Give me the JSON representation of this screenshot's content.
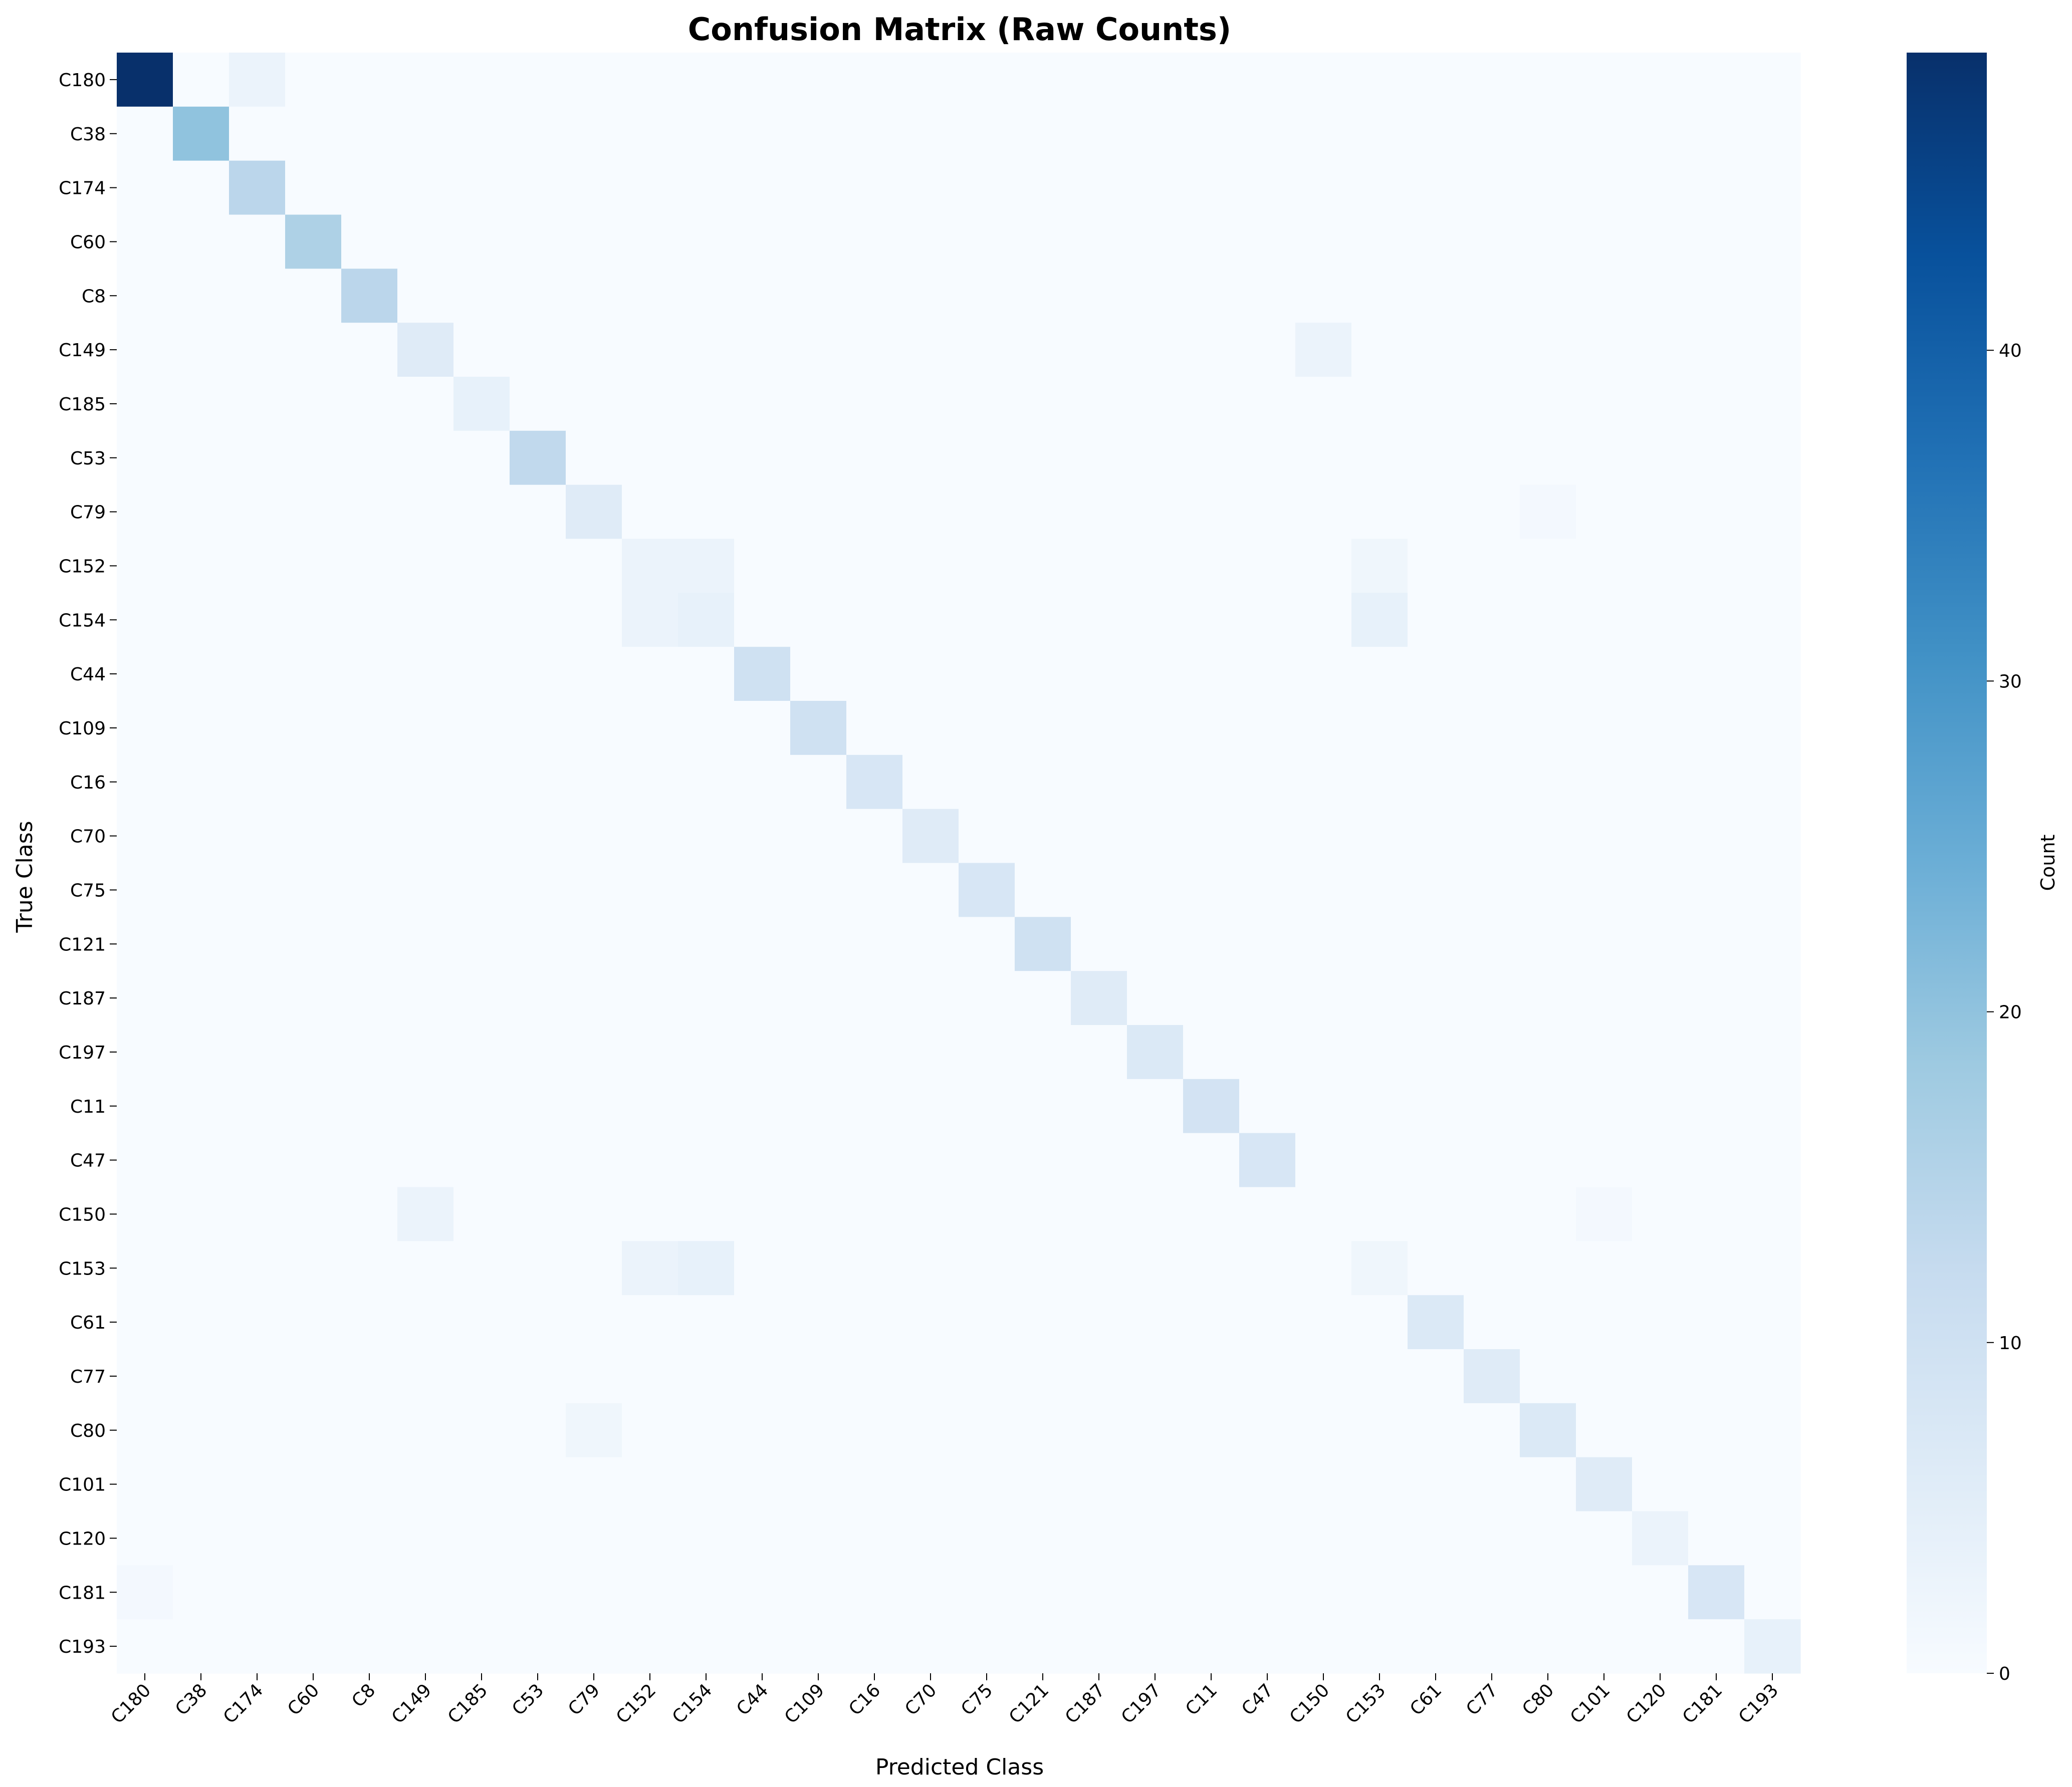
{
  "chart_data": {
    "type": "heatmap",
    "title": "Confusion Matrix (Raw Counts)",
    "xlabel": "Predicted Class",
    "ylabel": "True Class",
    "colorbar_label": "Count",
    "colormap": "Blues",
    "vmin": 0,
    "vmax": 49,
    "colorbar_ticks": [
      0,
      10,
      20,
      30,
      40
    ],
    "classes": [
      "C180",
      "C38",
      "C174",
      "C60",
      "C8",
      "C149",
      "C185",
      "C53",
      "C79",
      "C152",
      "C154",
      "C44",
      "C109",
      "C16",
      "C70",
      "C75",
      "C121",
      "C187",
      "C197",
      "C11",
      "C47",
      "C150",
      "C153",
      "C61",
      "C77",
      "C80",
      "C101",
      "C120",
      "C181",
      "C193"
    ],
    "cells": [
      {
        "row": 0,
        "col": 0,
        "value": 49
      },
      {
        "row": 0,
        "col": 2,
        "value": 3
      },
      {
        "row": 1,
        "col": 1,
        "value": 20
      },
      {
        "row": 2,
        "col": 2,
        "value": 14
      },
      {
        "row": 3,
        "col": 3,
        "value": 16
      },
      {
        "row": 4,
        "col": 4,
        "value": 14
      },
      {
        "row": 5,
        "col": 5,
        "value": 6
      },
      {
        "row": 5,
        "col": 21,
        "value": 3
      },
      {
        "row": 6,
        "col": 6,
        "value": 4
      },
      {
        "row": 7,
        "col": 7,
        "value": 13
      },
      {
        "row": 8,
        "col": 8,
        "value": 6
      },
      {
        "row": 8,
        "col": 25,
        "value": 1
      },
      {
        "row": 9,
        "col": 9,
        "value": 3
      },
      {
        "row": 9,
        "col": 10,
        "value": 3
      },
      {
        "row": 9,
        "col": 22,
        "value": 2
      },
      {
        "row": 10,
        "col": 9,
        "value": 3
      },
      {
        "row": 10,
        "col": 10,
        "value": 4
      },
      {
        "row": 10,
        "col": 22,
        "value": 4
      },
      {
        "row": 11,
        "col": 11,
        "value": 10
      },
      {
        "row": 12,
        "col": 12,
        "value": 10
      },
      {
        "row": 13,
        "col": 13,
        "value": 8
      },
      {
        "row": 14,
        "col": 14,
        "value": 6
      },
      {
        "row": 15,
        "col": 15,
        "value": 8
      },
      {
        "row": 16,
        "col": 16,
        "value": 10
      },
      {
        "row": 17,
        "col": 17,
        "value": 6
      },
      {
        "row": 18,
        "col": 18,
        "value": 7
      },
      {
        "row": 19,
        "col": 19,
        "value": 9
      },
      {
        "row": 20,
        "col": 20,
        "value": 8
      },
      {
        "row": 21,
        "col": 5,
        "value": 3
      },
      {
        "row": 21,
        "col": 26,
        "value": 1
      },
      {
        "row": 22,
        "col": 9,
        "value": 3
      },
      {
        "row": 22,
        "col": 10,
        "value": 4
      },
      {
        "row": 22,
        "col": 22,
        "value": 2
      },
      {
        "row": 23,
        "col": 23,
        "value": 7
      },
      {
        "row": 24,
        "col": 24,
        "value": 6
      },
      {
        "row": 25,
        "col": 8,
        "value": 2
      },
      {
        "row": 25,
        "col": 25,
        "value": 7
      },
      {
        "row": 26,
        "col": 26,
        "value": 6
      },
      {
        "row": 27,
        "col": 27,
        "value": 3
      },
      {
        "row": 28,
        "col": 0,
        "value": 1
      },
      {
        "row": 28,
        "col": 28,
        "value": 8
      },
      {
        "row": 29,
        "col": 29,
        "value": 4
      }
    ]
  }
}
